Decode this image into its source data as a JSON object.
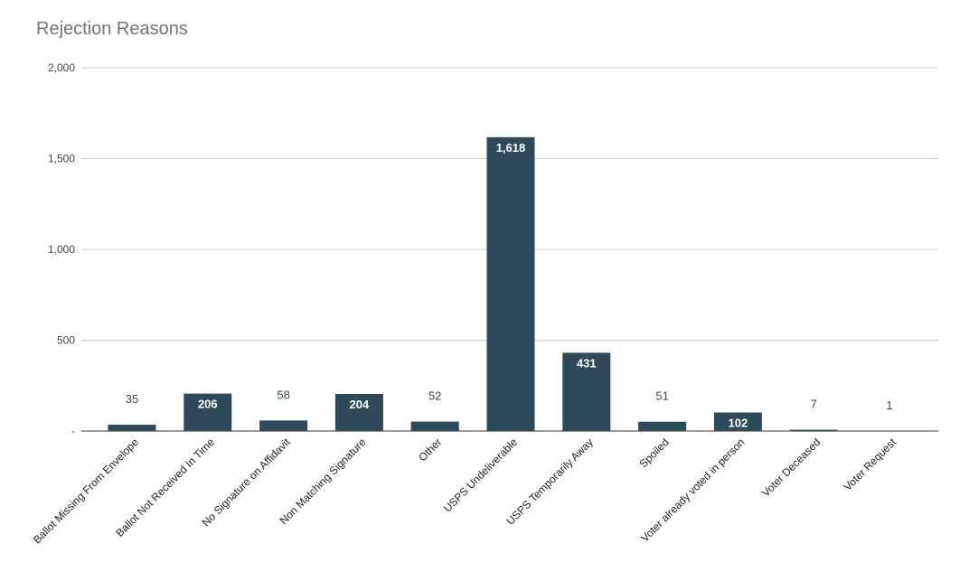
{
  "chart_data": {
    "type": "bar",
    "title": "Rejection Reasons",
    "categories": [
      "Ballot Missing From Envelope",
      "Ballot Not Received In Time",
      "No Signature on Affidavit",
      "Non Matching  Signature",
      "Other",
      "USPS Undeliverable",
      "USPS Temporarily Away",
      "Spoiled",
      "Voter already voted in person",
      "Voter Deceased",
      "Voter Request"
    ],
    "values": [
      35,
      206,
      58,
      204,
      52,
      1618,
      431,
      51,
      102,
      7,
      1
    ],
    "value_labels": [
      "35",
      "206",
      "58",
      "204",
      "52",
      "1,618",
      "431",
      "51",
      "102",
      "7",
      "1"
    ],
    "yticks": [
      {
        "value": 0,
        "label": "-"
      },
      {
        "value": 500,
        "label": "500"
      },
      {
        "value": 1000,
        "label": "1,000"
      },
      {
        "value": 1500,
        "label": "1,500"
      },
      {
        "value": 2000,
        "label": "2,000"
      }
    ],
    "ylim": [
      0,
      2000
    ],
    "grid": true,
    "legend": "none",
    "bar_color": "#2e4a5a"
  }
}
